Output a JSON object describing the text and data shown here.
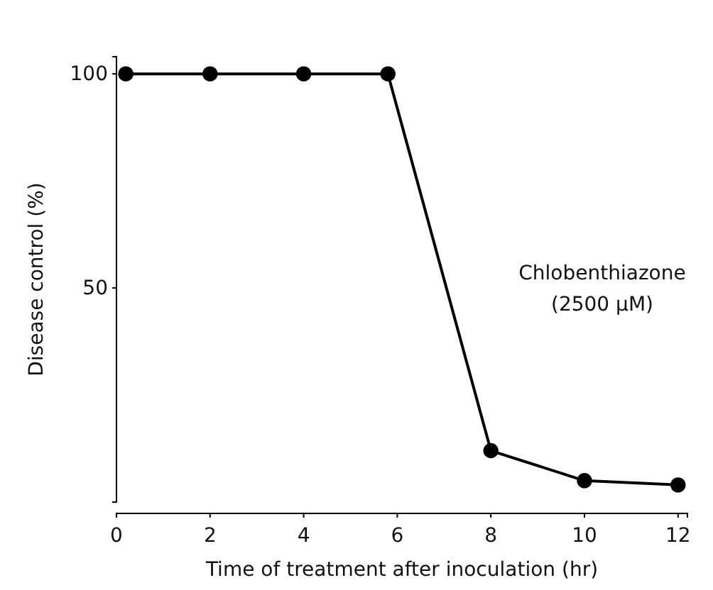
{
  "chart_data": {
    "type": "line",
    "xlabel": "Time of treatment after inoculation (hr)",
    "ylabel": "Disease control (%)",
    "annotations": [
      "Chlobenthiazone\n(2500 μM)"
    ],
    "x": [
      0.2,
      2,
      4,
      5.8,
      8,
      10,
      12
    ],
    "series": [
      {
        "color": "#000000",
        "values": [
          100,
          100,
          100,
          100,
          12,
          5,
          4
        ]
      }
    ],
    "xlim": [
      0,
      12.2
    ],
    "ylim": [
      0,
      104
    ],
    "xticks": [
      0,
      2,
      4,
      6,
      8,
      10,
      12
    ],
    "yticks": [
      50,
      100
    ],
    "marker": "circle",
    "line_style": "solid",
    "grid": false
  }
}
